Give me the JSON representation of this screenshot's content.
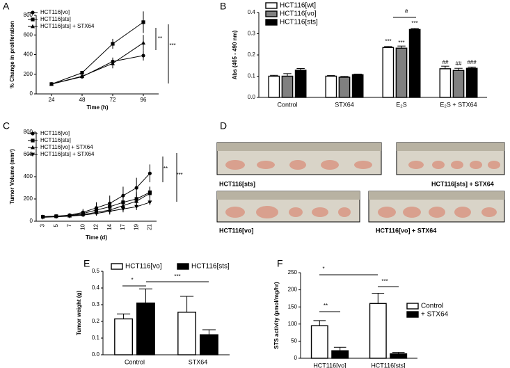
{
  "panel_labels": [
    "A",
    "B",
    "C",
    "D",
    "E",
    "F"
  ],
  "chart_data": [
    {
      "type": "line",
      "xlabel": "Time (h)",
      "ylabel": "% Change in proliferation",
      "x": [
        24,
        48,
        72,
        96
      ],
      "xlim": [
        12,
        108
      ],
      "xticks": [
        24,
        48,
        72,
        96
      ],
      "ylim": [
        0,
        800
      ],
      "yticks": [
        0,
        200,
        400,
        600,
        800
      ],
      "series": [
        {
          "name": "HCT116[vo]",
          "marker": "circle",
          "color": "#000000",
          "values": [
            100,
            175,
            330,
            390
          ],
          "errors": [
            5,
            10,
            40,
            50
          ]
        },
        {
          "name": "HCT116[sts]",
          "marker": "square",
          "color": "#000000",
          "values": [
            100,
            215,
            510,
            730
          ],
          "errors": [
            5,
            15,
            50,
            110
          ]
        },
        {
          "name": "HCT116[sts] + STX64",
          "marker": "triangle",
          "color": "#000000",
          "values": [
            100,
            180,
            310,
            520
          ],
          "errors": [
            5,
            10,
            50,
            80
          ]
        }
      ],
      "annotations": [
        "**",
        "***"
      ]
    },
    {
      "type": "bar",
      "ylabel": "Abs (405 - 490 nm)",
      "categories": [
        "Control",
        "STX64",
        "E₂S",
        "E₂S + STX64"
      ],
      "ylim": [
        0,
        0.4
      ],
      "yticks": [
        {
          "value": 0,
          "label": "0.0"
        },
        0.1,
        0.2,
        0.3,
        0.4
      ],
      "series": [
        {
          "name": "HCT116[wt]",
          "color": "#ffffff",
          "values": [
            0.1,
            0.1,
            0.235,
            0.135
          ],
          "errors": [
            0.004,
            0.003,
            0.005,
            0.012
          ]
        },
        {
          "name": "HCT116[vo]",
          "color": "#808080",
          "values": [
            0.1,
            0.095,
            0.232,
            0.127
          ],
          "errors": [
            0.012,
            0.004,
            0.01,
            0.01
          ]
        },
        {
          "name": "HCT116[sts]",
          "color": "#000000",
          "values": [
            0.128,
            0.107,
            0.32,
            0.137
          ],
          "errors": [
            0.008,
            0.003,
            0.005,
            0.006
          ]
        }
      ],
      "annotations": [
        "***",
        "***",
        "***",
        "a",
        "##",
        "##",
        "###"
      ]
    },
    {
      "type": "line",
      "xlabel": "Time (d)",
      "ylabel": "Tumor Volume (mm³)",
      "categories": [
        "3",
        "5",
        "7",
        "10",
        "12",
        "14",
        "17",
        "19",
        "21"
      ],
      "ylim": [
        0,
        800
      ],
      "yticks": [
        0,
        200,
        400,
        600,
        800
      ],
      "series": [
        {
          "name": "HCT116[vo]",
          "marker": "circle",
          "color": "#000000",
          "values": [
            40,
            45,
            55,
            80,
            120,
            160,
            230,
            300,
            430
          ],
          "errors": [
            10,
            10,
            15,
            30,
            50,
            70,
            80,
            90,
            80
          ]
        },
        {
          "name": "HCT116[sts]",
          "marker": "square",
          "color": "#000000",
          "values": [
            40,
            45,
            50,
            70,
            100,
            130,
            170,
            200,
            260
          ],
          "errors": [
            10,
            10,
            15,
            20,
            30,
            40,
            50,
            60,
            50
          ]
        },
        {
          "name": "HCT116[vo] + STX64",
          "marker": "triangle",
          "color": "#000000",
          "values": [
            40,
            45,
            50,
            60,
            80,
            100,
            140,
            180,
            250
          ],
          "errors": [
            10,
            10,
            10,
            20,
            30,
            40,
            50,
            60,
            60
          ]
        },
        {
          "name": "HCT116[sts] + STX64",
          "marker": "triangle-down",
          "color": "#000000",
          "values": [
            35,
            40,
            45,
            55,
            70,
            90,
            110,
            130,
            170
          ],
          "errors": [
            10,
            10,
            10,
            15,
            20,
            25,
            30,
            30,
            25
          ]
        }
      ],
      "annotations": [
        "**",
        "***"
      ]
    },
    {
      "type": "bar",
      "ylabel": "Tumor weight (g)",
      "categories": [
        "Control",
        "STX64"
      ],
      "ylim": [
        0,
        0.5
      ],
      "yticks": [
        {
          "value": 0,
          "label": "0.0"
        },
        0.1,
        0.2,
        0.3,
        0.4,
        0.5
      ],
      "series": [
        {
          "name": "HCT116[vo]",
          "color": "#ffffff",
          "values": [
            0.215,
            0.255
          ],
          "errors": [
            0.03,
            0.095
          ]
        },
        {
          "name": "HCT116[sts]",
          "color": "#000000",
          "values": [
            0.31,
            0.12
          ],
          "errors": [
            0.085,
            0.03
          ]
        }
      ],
      "annotations": [
        "*",
        "***"
      ]
    },
    {
      "type": "bar",
      "ylabel": "STS activity (pmol/mg/hr)",
      "categories": [
        "HCT116[vo]",
        "HCT116[sts]"
      ],
      "ylim": [
        0,
        250
      ],
      "yticks": [
        0,
        50,
        100,
        150,
        200,
        250
      ],
      "series": [
        {
          "name": "Control",
          "color": "#ffffff",
          "values": [
            95,
            160
          ],
          "errors": [
            15,
            30
          ]
        },
        {
          "name": "+ STX64",
          "color": "#000000",
          "values": [
            22,
            13
          ],
          "errors": [
            10,
            4
          ]
        }
      ],
      "annotations": [
        "**",
        "*",
        "***"
      ]
    }
  ],
  "photo_panel": {
    "captions": [
      "HCT116[sts]",
      "HCT116[sts] + STX64",
      "HCT116[vo]",
      "HCT116[vo] + STX64"
    ]
  }
}
